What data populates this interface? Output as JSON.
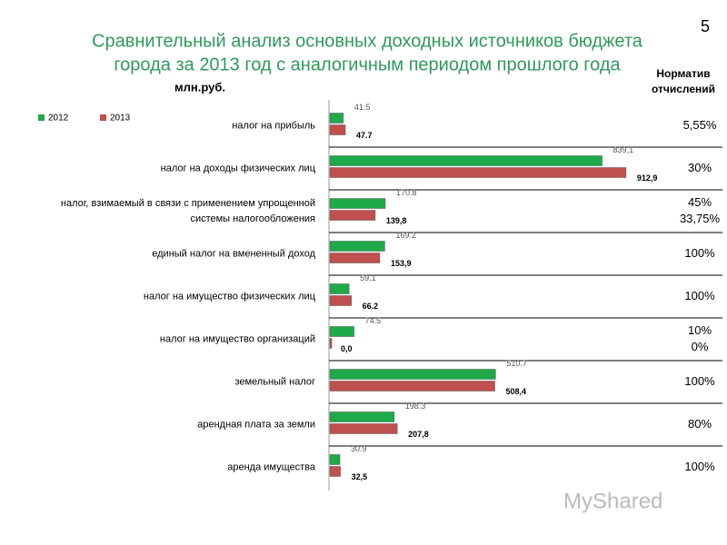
{
  "page_number": "5",
  "watermark": "MyShared",
  "norm_header": [
    "Норматив",
    "отчислений"
  ],
  "norms": [
    [
      "5,55%"
    ],
    [
      "30%"
    ],
    [
      "45%",
      "33,75%"
    ],
    [
      "100%"
    ],
    [
      "100%"
    ],
    [
      "10%",
      "0%"
    ],
    [
      "100%"
    ],
    [
      "80%"
    ],
    [
      "100%"
    ]
  ],
  "chart_data": {
    "type": "hbar",
    "title": [
      "Сравнительный анализ основных доходных источников бюджета",
      "города за 2013 год с аналогичным периодом прошлого года"
    ],
    "unit_label": "млн.руб.",
    "categories": [
      [
        "налог на прибыль"
      ],
      [
        "налог на доходы физических лиц"
      ],
      [
        "налог, взимаемый в связи с применением упрощенной",
        "системы налогообложения"
      ],
      [
        "единый налог на вмененный доход"
      ],
      [
        "налог на имущество физических лиц"
      ],
      [
        "налог на имущество организаций"
      ],
      [
        "земельный налог"
      ],
      [
        "арендная плата за земли"
      ],
      [
        "аренда имущества"
      ]
    ],
    "series": [
      {
        "name": "2012",
        "color": "#1faa4a",
        "values": [
          41.5,
          839.1,
          170.8,
          169.2,
          59.1,
          74.5,
          510.7,
          198.3,
          30.9
        ],
        "value_labels": [
          "41.5",
          "839,1",
          "170.8",
          "169.2",
          "59.1",
          "74.5",
          "510.7",
          "198.3",
          "30.9"
        ]
      },
      {
        "name": "2013",
        "color": "#c0504d",
        "values": [
          47.7,
          912.9,
          139.8,
          153.9,
          66.2,
          0.0,
          508.4,
          207.8,
          32.5
        ],
        "value_labels": [
          "47.7",
          "912,9",
          "139,8",
          "153,9",
          "66.2",
          "0,0",
          "508,4",
          "207,8",
          "32,5"
        ]
      }
    ],
    "xlim": [
      0,
      1000
    ]
  }
}
